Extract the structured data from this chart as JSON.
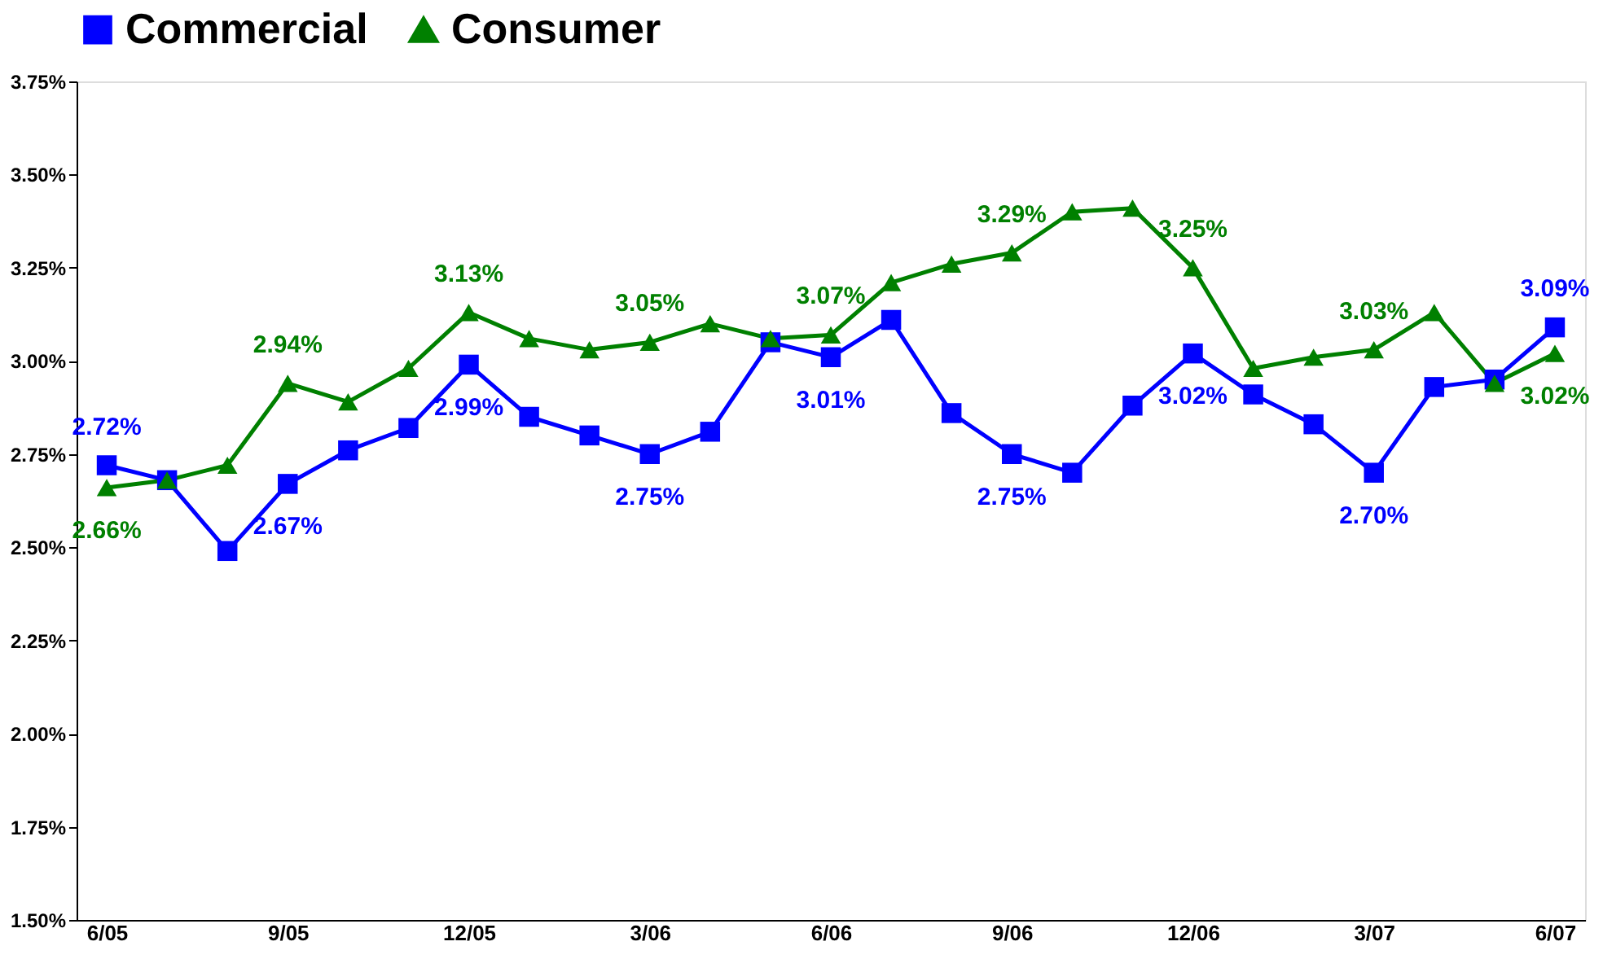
{
  "chart_data": {
    "type": "line",
    "categories": [
      "6/05",
      null,
      null,
      "9/05",
      null,
      null,
      "12/05",
      null,
      null,
      "3/06",
      null,
      null,
      "6/06",
      null,
      null,
      "9/06",
      null,
      null,
      "12/06",
      null,
      null,
      "3/07",
      null,
      null,
      "6/07"
    ],
    "ylim": [
      1.5,
      3.75
    ],
    "yticks": [
      {
        "value": 1.5,
        "label": "1.50%"
      },
      {
        "value": 1.75,
        "label": "1.75%"
      },
      {
        "value": 2.0,
        "label": "2.00%"
      },
      {
        "value": 2.25,
        "label": "2.25%"
      },
      {
        "value": 2.5,
        "label": "2.50%"
      },
      {
        "value": 2.75,
        "label": "2.75%"
      },
      {
        "value": 3.0,
        "label": "3.00%"
      },
      {
        "value": 3.25,
        "label": "3.25%"
      },
      {
        "value": 3.5,
        "label": "3.50%"
      },
      {
        "value": 3.75,
        "label": "3.75%"
      }
    ],
    "series": [
      {
        "name": "Commercial",
        "color": "#0000ff",
        "marker": "square",
        "values": [
          2.72,
          2.68,
          2.49,
          2.67,
          2.76,
          2.82,
          2.99,
          2.85,
          2.8,
          2.75,
          2.81,
          3.05,
          3.01,
          3.11,
          2.86,
          2.75,
          2.7,
          2.88,
          3.02,
          2.91,
          2.83,
          2.7,
          2.93,
          2.95,
          3.09
        ],
        "value_labels": [
          "2.72%",
          null,
          null,
          "2.67%",
          null,
          null,
          "2.99%",
          null,
          null,
          "2.75%",
          null,
          null,
          "3.01%",
          null,
          null,
          "2.75%",
          null,
          null,
          "3.02%",
          null,
          null,
          "2.70%",
          null,
          null,
          "3.09%"
        ]
      },
      {
        "name": "Consumer",
        "color": "#008000",
        "marker": "triangle",
        "values": [
          2.66,
          2.68,
          2.72,
          2.94,
          2.89,
          2.98,
          3.13,
          3.06,
          3.03,
          3.05,
          3.1,
          3.06,
          3.07,
          3.21,
          3.26,
          3.29,
          3.4,
          3.41,
          3.25,
          2.98,
          3.01,
          3.03,
          3.13,
          2.94,
          3.02
        ],
        "value_labels": [
          "2.66%",
          null,
          null,
          "2.94%",
          null,
          null,
          "3.13%",
          null,
          null,
          "3.05%",
          null,
          null,
          "3.07%",
          null,
          null,
          "3.29%",
          null,
          null,
          "3.25%",
          null,
          null,
          "3.03%",
          null,
          null,
          "3.02%"
        ]
      }
    ],
    "legend": "top",
    "grid": false,
    "line_style": "solid"
  }
}
